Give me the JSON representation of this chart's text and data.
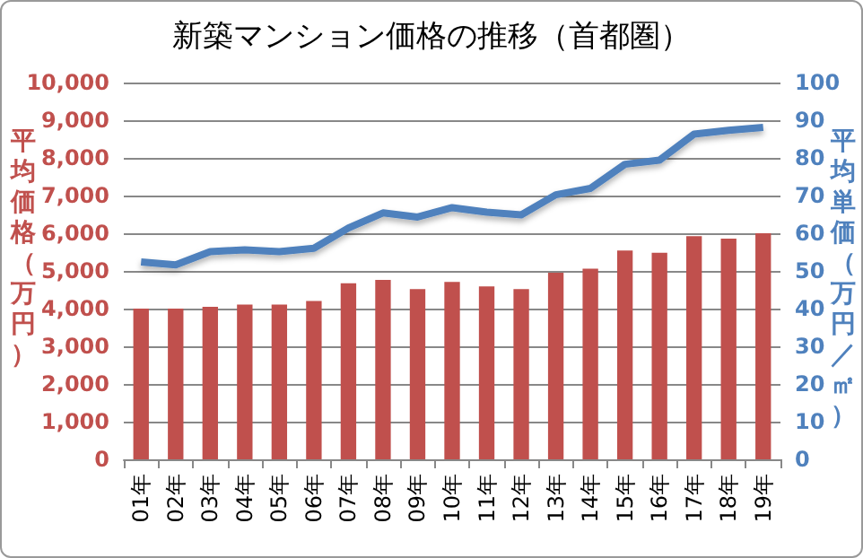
{
  "chart_data": {
    "type": "bar",
    "title": "新築マンション価格の推移（首都圏）",
    "ylabel": "平均価格（万円）",
    "y2label": "平均単価（万円／㎡）",
    "categories": [
      "01年",
      "02年",
      "03年",
      "04年",
      "05年",
      "06年",
      "07年",
      "08年",
      "09年",
      "10年",
      "11年",
      "12年",
      "13年",
      "14年",
      "15年",
      "16年",
      "17年",
      "18年",
      "19年"
    ],
    "series": [
      {
        "color": "#c0504d",
        "values": [
          4000,
          4000,
          4050,
          4110,
          4110,
          4200,
          4670,
          4760,
          4520,
          4710,
          4590,
          4520,
          4950,
          5060,
          5540,
          5480,
          5920,
          5860,
          6000
        ]
      },
      {
        "type": "line",
        "axis": "y2",
        "color": "#4f81bd",
        "values": [
          52.4,
          51.6,
          55.1,
          55.6,
          55.1,
          56.0,
          61.4,
          65.4,
          64.3,
          66.8,
          65.6,
          64.9,
          70.2,
          71.9,
          78.3,
          79.4,
          86.3,
          87.3,
          88.1
        ]
      }
    ],
    "ylim": [
      0,
      10000
    ],
    "yticks": [
      0,
      {
        "value": 1000,
        "label": "1,000"
      },
      {
        "value": 2000,
        "label": "2,000"
      },
      {
        "value": 3000,
        "label": "3,000"
      },
      {
        "value": 4000,
        "label": "4,000"
      },
      {
        "value": 5000,
        "label": "5,000"
      },
      {
        "value": 6000,
        "label": "6,000"
      },
      {
        "value": 7000,
        "label": "7,000"
      },
      {
        "value": 8000,
        "label": "8,000"
      },
      {
        "value": 9000,
        "label": "9,000"
      },
      {
        "value": 10000,
        "label": "10,000"
      }
    ],
    "y2lim": [
      0,
      100
    ],
    "y2ticks": [
      0,
      10,
      20,
      30,
      40,
      50,
      60,
      70,
      80,
      90,
      100
    ],
    "grid": "y",
    "marker": "none",
    "line_style": "solid"
  }
}
